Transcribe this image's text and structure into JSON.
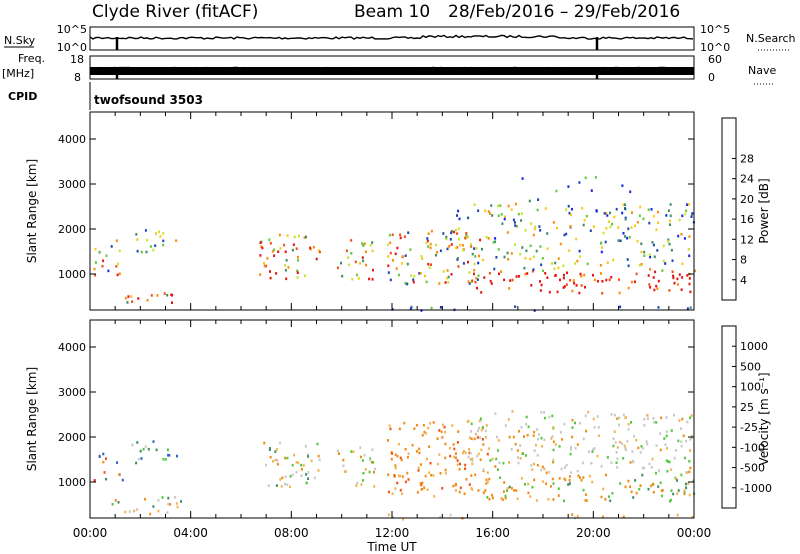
{
  "header": {
    "title": "Clyde River (fitACF)",
    "beam": "Beam 10",
    "date_range": "28/Feb/2016 – 29/Feb/2016"
  },
  "status_panels": {
    "nsky_label": "N.Sky",
    "nsky_top": "10^5",
    "nsky_bottom": "10^0",
    "nsearch_label": "N.Search",
    "nsearch_top": "10^5",
    "nsearch_bottom": "10^0",
    "freq_label": "Freq.",
    "freq_unit": "[MHz]",
    "freq_top": "18",
    "freq_bottom": "8",
    "nave_label": "Nave",
    "nave_top": "60",
    "nave_bottom": "0",
    "cpid_label": "CPID",
    "cpid_value": "twofsound 3503"
  },
  "chart_data": [
    {
      "type": "heatmap",
      "name": "power",
      "ylabel": "Slant Range [km]",
      "y_ticks": [
        "1000",
        "2000",
        "3000",
        "4000"
      ],
      "ylim": [
        200,
        4600
      ],
      "colorbar_label": "Power [dB]",
      "colorbar_ticks": [
        "4",
        "8",
        "12",
        "16",
        "20",
        "24",
        "28"
      ],
      "colors": [
        "#1428e6",
        "#1e46b4",
        "#3c8c64",
        "#64c83c",
        "#c8e628",
        "#fac814",
        "#fa8c0a",
        "#f05014",
        "#e61414"
      ]
    },
    {
      "type": "heatmap",
      "name": "velocity",
      "ylabel": "Slant Range [km]",
      "y_ticks": [
        "1000",
        "2000",
        "3000",
        "4000"
      ],
      "ylim": [
        200,
        4600
      ],
      "colorbar_label": "Velocity [m s⁻¹]",
      "colorbar_ticks": [
        "1000",
        "500",
        "100",
        "25",
        "-25",
        "-100",
        "-500",
        "-1000"
      ],
      "colors": [
        "#1e32b4",
        "#2860c8",
        "#3c8c64",
        "#50c83c",
        "#c8c8c8",
        "#f0b450",
        "#f08c14",
        "#f05014",
        "#e61414"
      ]
    }
  ],
  "x_axis": {
    "label": "Time UT",
    "ticks": [
      "00:00",
      "04:00",
      "08:00",
      "12:00",
      "16:00",
      "20:00",
      "00:00"
    ]
  }
}
